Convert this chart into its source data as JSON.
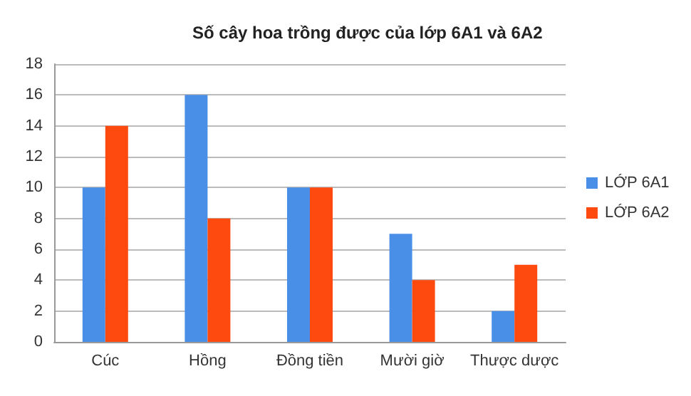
{
  "chart_data": {
    "type": "bar",
    "title": "Số cây hoa trồng được của lớp 6A1 và 6A2",
    "categories": [
      "Cúc",
      "Hồng",
      "Đồng tiền",
      "Mười giờ",
      "Thược dược"
    ],
    "series": [
      {
        "name": "LỚP 6A1",
        "color": "#4a8fe7",
        "values": [
          10,
          16,
          10,
          7,
          2
        ]
      },
      {
        "name": "LỚP 6A2",
        "color": "#ff4a0f",
        "values": [
          14,
          8,
          10,
          4,
          5
        ]
      }
    ],
    "ylim": [
      0,
      18
    ],
    "yticks": [
      0,
      2,
      4,
      6,
      8,
      10,
      12,
      14,
      16,
      18
    ],
    "grid": "y",
    "legend": "right"
  }
}
